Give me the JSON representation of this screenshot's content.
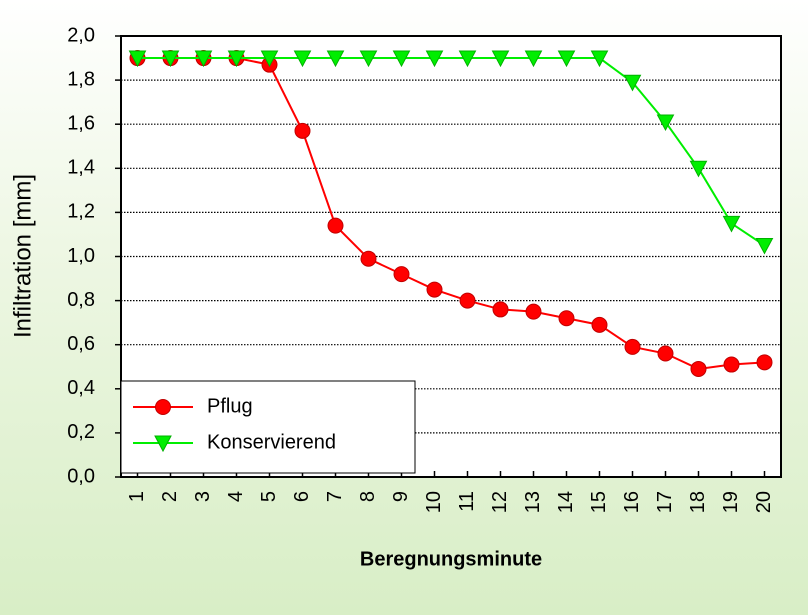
{
  "chart_data": {
    "type": "line",
    "x_label": "Beregnungsminute",
    "y_label": "Infiltration [mm]",
    "categories": [
      "1",
      "2",
      "3",
      "4",
      "5",
      "6",
      "7",
      "8",
      "9",
      "10",
      "11",
      "12",
      "13",
      "14",
      "15",
      "16",
      "17",
      "18",
      "19",
      "20"
    ],
    "series": [
      {
        "name": "Pflug",
        "color": "#ff0000",
        "marker": "circle",
        "values": [
          1.9,
          1.9,
          1.9,
          1.9,
          1.87,
          1.57,
          1.14,
          0.99,
          0.92,
          0.85,
          0.8,
          0.76,
          0.75,
          0.72,
          0.69,
          0.59,
          0.56,
          0.49,
          0.51,
          0.52
        ]
      },
      {
        "name": "Konservierend",
        "color": "#00ee00",
        "marker": "triangle-down",
        "values": [
          1.9,
          1.9,
          1.9,
          1.9,
          1.9,
          1.9,
          1.9,
          1.9,
          1.9,
          1.9,
          1.9,
          1.9,
          1.9,
          1.9,
          1.9,
          1.79,
          1.61,
          1.4,
          1.15,
          1.05
        ]
      }
    ],
    "ylim": [
      0,
      2
    ],
    "yticks": [
      {
        "value": 0,
        "label": "0,0"
      },
      {
        "value": 0.2,
        "label": "0,2"
      },
      {
        "value": 0.4,
        "label": "0,4"
      },
      {
        "value": 0.6,
        "label": "0,6"
      },
      {
        "value": 0.8,
        "label": "0,8"
      },
      {
        "value": 1,
        "label": "1,0"
      },
      {
        "value": 1.2,
        "label": "1,2"
      },
      {
        "value": 1.4,
        "label": "1,4"
      },
      {
        "value": 1.6,
        "label": "1,6"
      },
      {
        "value": 1.8,
        "label": "1,8"
      },
      {
        "value": 2,
        "label": "2,0"
      }
    ],
    "grid": true,
    "legend": "lower left"
  }
}
